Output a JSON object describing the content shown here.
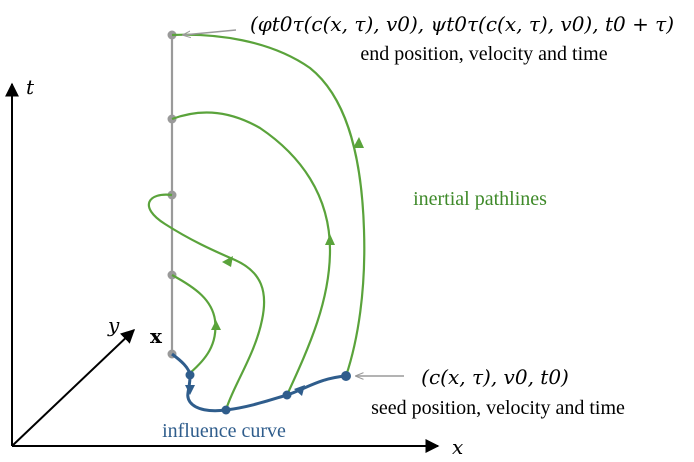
{
  "axes": {
    "x": "x",
    "y": "y",
    "t": "t"
  },
  "point_label": "x",
  "influence_curve_label": "influence curve",
  "pathlines_label": "inertial pathlines",
  "end_label": {
    "formula": "(φt0τ(c(x, τ), v0),  ψt0τ(c(x, τ), v0), t0 + τ)",
    "caption": "end position, velocity and time"
  },
  "seed_label": {
    "formula": "(c(x, τ), v0, t0)",
    "caption": "seed position, velocity and time"
  },
  "colors": {
    "pathline": "#5aa33b",
    "influence": "#2f5d8c",
    "vertical": "#9a9a9a",
    "axis": "#000000",
    "label_green": "#3f8a2a",
    "label_blue": "#2f5d8c"
  }
}
